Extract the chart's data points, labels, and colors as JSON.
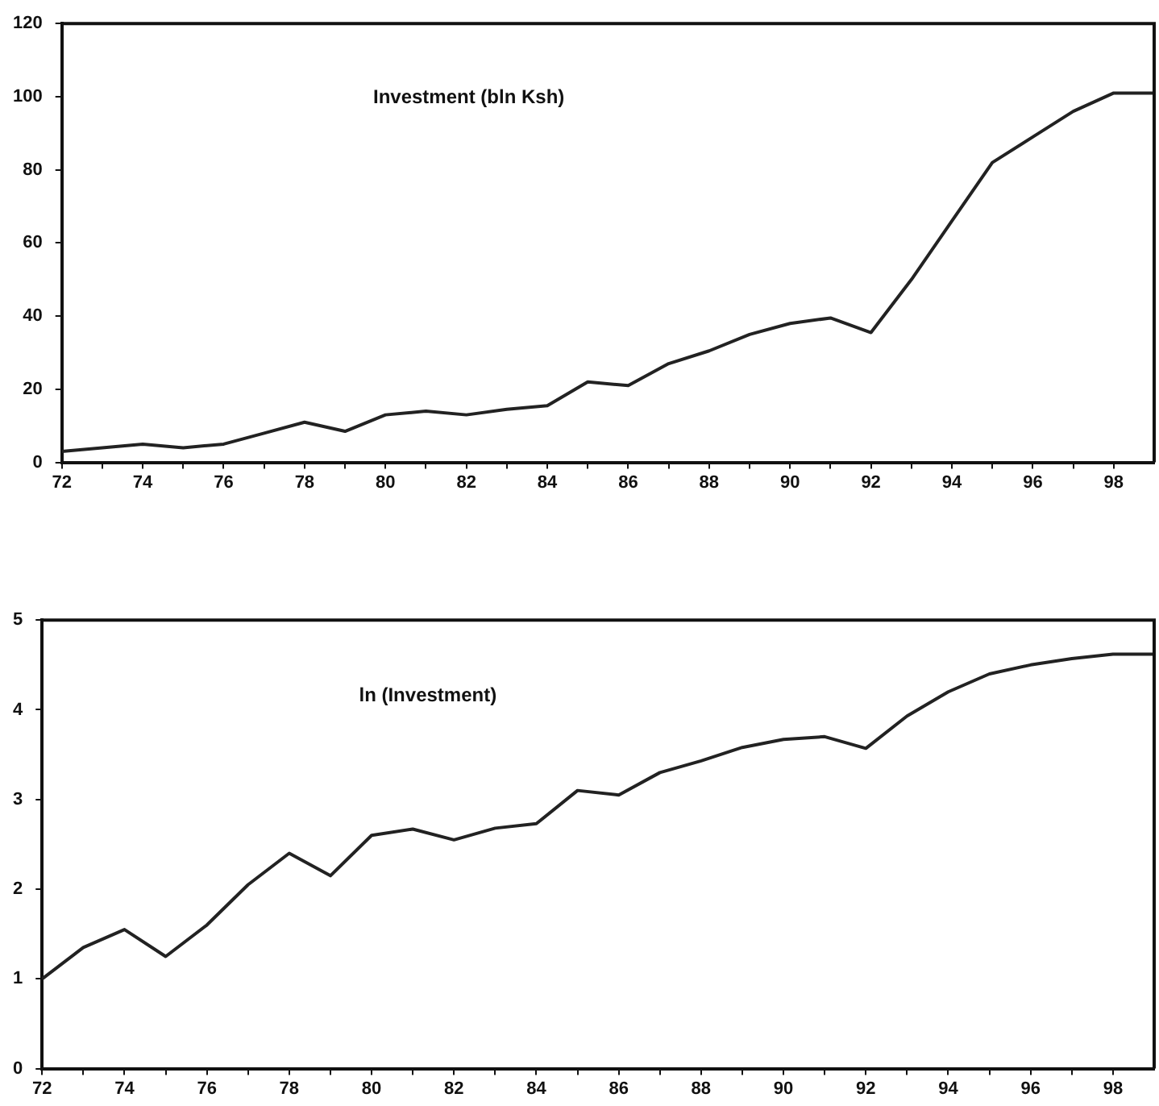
{
  "chart_data": [
    {
      "type": "line",
      "annotations": [
        "Investment (bln Ksh)"
      ],
      "x": [
        72,
        73,
        74,
        75,
        76,
        77,
        78,
        79,
        80,
        81,
        82,
        83,
        84,
        85,
        86,
        87,
        88,
        89,
        90,
        91,
        92,
        93,
        94,
        95,
        96,
        97,
        98,
        99
      ],
      "series": [
        {
          "color": "#222222",
          "values": [
            3,
            4,
            5,
            4,
            5,
            8,
            11,
            8.5,
            13,
            14,
            13,
            14.5,
            15.5,
            22,
            21,
            27,
            30.5,
            35,
            38,
            39.5,
            35.5,
            50,
            66,
            82,
            89,
            96,
            101,
            101
          ]
        }
      ],
      "xlim": [
        72,
        99
      ],
      "ylim": [
        0,
        120
      ],
      "xticks": [
        72,
        {
          "value": 73,
          "label": null
        },
        74,
        {
          "value": 75,
          "label": null
        },
        76,
        {
          "value": 77,
          "label": null
        },
        78,
        {
          "value": 79,
          "label": null
        },
        80,
        {
          "value": 81,
          "label": null
        },
        82,
        {
          "value": 83,
          "label": null
        },
        84,
        {
          "value": 85,
          "label": null
        },
        86,
        {
          "value": 87,
          "label": null
        },
        88,
        {
          "value": 89,
          "label": null
        },
        90,
        {
          "value": 91,
          "label": null
        },
        92,
        {
          "value": 93,
          "label": null
        },
        94,
        {
          "value": 95,
          "label": null
        },
        96,
        {
          "value": 97,
          "label": null
        },
        98
      ],
      "yticks": [
        0,
        20,
        40,
        60,
        80,
        100,
        120
      ],
      "marker": "none"
    },
    {
      "type": "line",
      "annotations": [
        "ln (Investment)"
      ],
      "x": [
        72,
        73,
        74,
        75,
        76,
        77,
        78,
        79,
        80,
        81,
        82,
        83,
        84,
        85,
        86,
        87,
        88,
        89,
        90,
        91,
        92,
        93,
        94,
        95,
        96,
        97,
        98,
        99
      ],
      "series": [
        {
          "color": "#222222",
          "values": [
            1.0,
            1.35,
            1.55,
            1.25,
            1.6,
            2.05,
            2.4,
            2.15,
            2.6,
            2.67,
            2.55,
            2.68,
            2.73,
            3.1,
            3.05,
            3.3,
            3.43,
            3.58,
            3.67,
            3.7,
            3.57,
            3.93,
            4.2,
            4.4,
            4.5,
            4.57,
            4.62,
            4.62
          ]
        }
      ],
      "xlim": [
        72,
        99
      ],
      "ylim": [
        0,
        5
      ],
      "xticks": [
        72,
        {
          "value": 73,
          "label": null
        },
        74,
        {
          "value": 75,
          "label": null
        },
        76,
        {
          "value": 77,
          "label": null
        },
        78,
        {
          "value": 79,
          "label": null
        },
        80,
        {
          "value": 81,
          "label": null
        },
        82,
        {
          "value": 83,
          "label": null
        },
        84,
        {
          "value": 85,
          "label": null
        },
        86,
        {
          "value": 87,
          "label": null
        },
        88,
        {
          "value": 89,
          "label": null
        },
        90,
        {
          "value": 91,
          "label": null
        },
        92,
        {
          "value": 93,
          "label": null
        },
        94,
        {
          "value": 95,
          "label": null
        },
        96,
        {
          "value": 97,
          "label": null
        },
        98
      ],
      "yticks": [
        0,
        1,
        2,
        3,
        4,
        5
      ],
      "marker": "none"
    }
  ]
}
